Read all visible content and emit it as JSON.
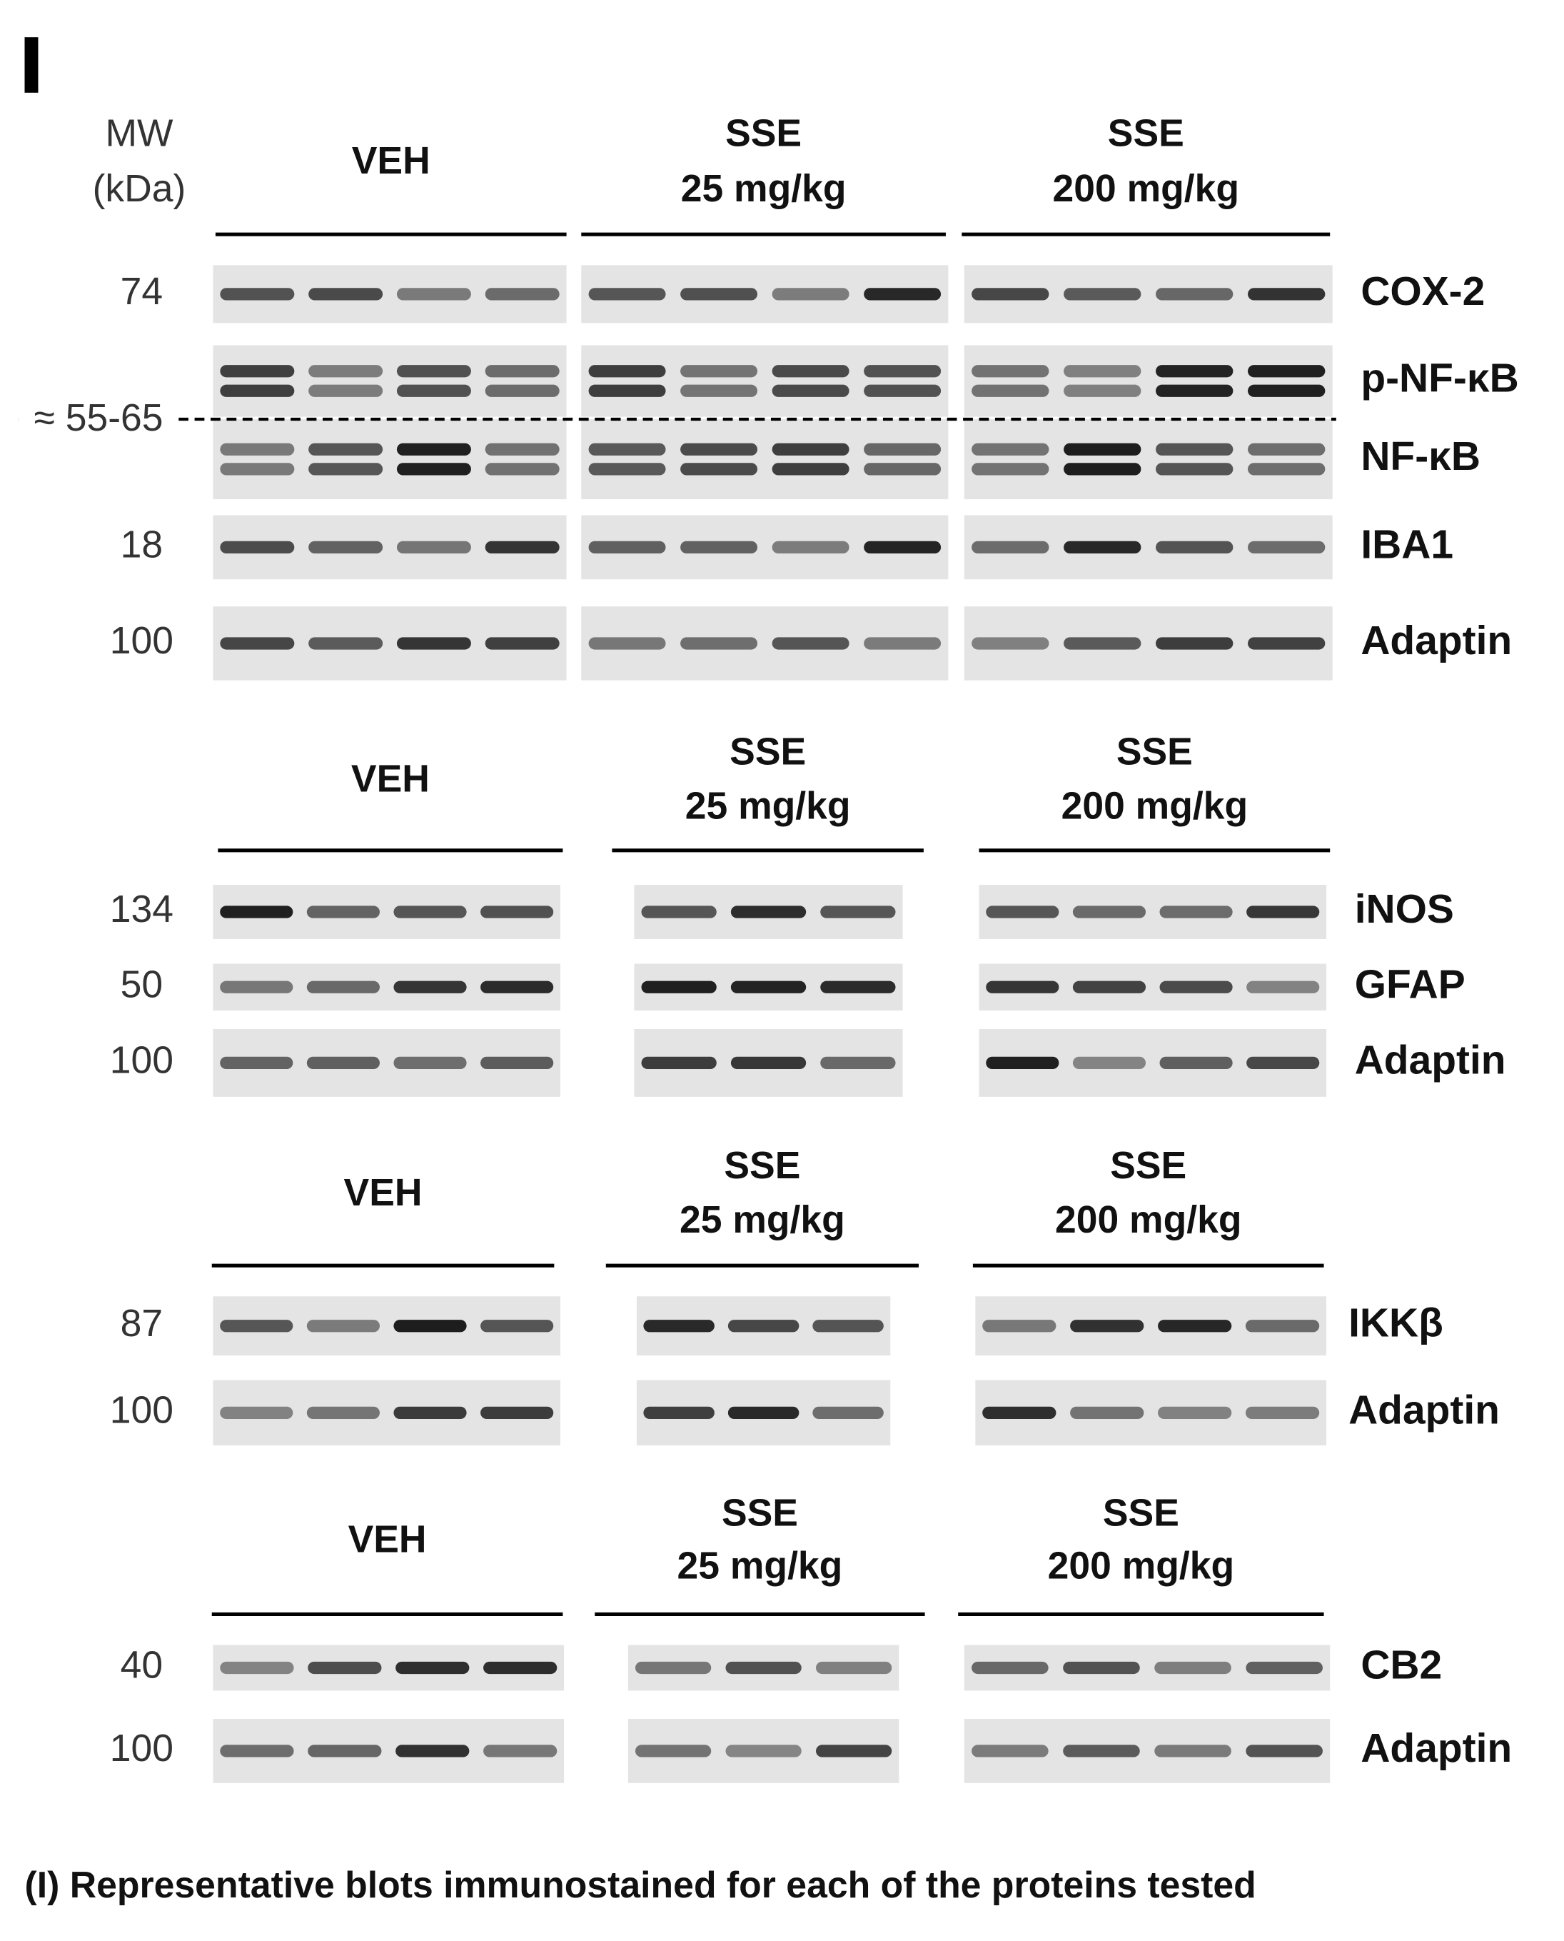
{
  "panel_label": "I",
  "mw_header": {
    "line1": "MW",
    "line2": "(kDa)"
  },
  "sections": [
    {
      "groups": [
        {
          "lines": [
            "VEH"
          ]
        },
        {
          "lines": [
            "SSE",
            "25 mg/kg"
          ]
        },
        {
          "lines": [
            "SSE",
            "200 mg/kg"
          ]
        }
      ],
      "rows": [
        {
          "mw": "74",
          "protein": "COX-2"
        },
        {
          "protein": "p-NF-κB"
        },
        {
          "protein": "NF-κB"
        },
        {
          "mw": "18",
          "protein": "IBA1"
        },
        {
          "mw": "100",
          "protein": "Adaptin"
        }
      ],
      "shared_mw": "≈ 55-65"
    },
    {
      "groups": [
        {
          "lines": [
            "VEH"
          ]
        },
        {
          "lines": [
            "SSE",
            "25 mg/kg"
          ]
        },
        {
          "lines": [
            "SSE",
            "200 mg/kg"
          ]
        }
      ],
      "rows": [
        {
          "mw": "134",
          "protein": "iNOS"
        },
        {
          "mw": "50",
          "protein": "GFAP"
        },
        {
          "mw": "100",
          "protein": "Adaptin"
        }
      ]
    },
    {
      "groups": [
        {
          "lines": [
            "VEH"
          ]
        },
        {
          "lines": [
            "SSE",
            "25 mg/kg"
          ]
        },
        {
          "lines": [
            "SSE",
            "200 mg/kg"
          ]
        }
      ],
      "rows": [
        {
          "mw": "87",
          "protein": "IKKβ"
        },
        {
          "mw": "100",
          "protein": "Adaptin"
        }
      ]
    },
    {
      "groups": [
        {
          "lines": [
            "VEH"
          ]
        },
        {
          "lines": [
            "SSE",
            "25 mg/kg"
          ]
        },
        {
          "lines": [
            "SSE",
            "200 mg/kg"
          ]
        }
      ],
      "rows": [
        {
          "mw": "40",
          "protein": "CB2"
        },
        {
          "mw": "100",
          "protein": "Adaptin"
        }
      ]
    }
  ],
  "caption": "(I) Representative blots immunostained for each of the proteins tested"
}
